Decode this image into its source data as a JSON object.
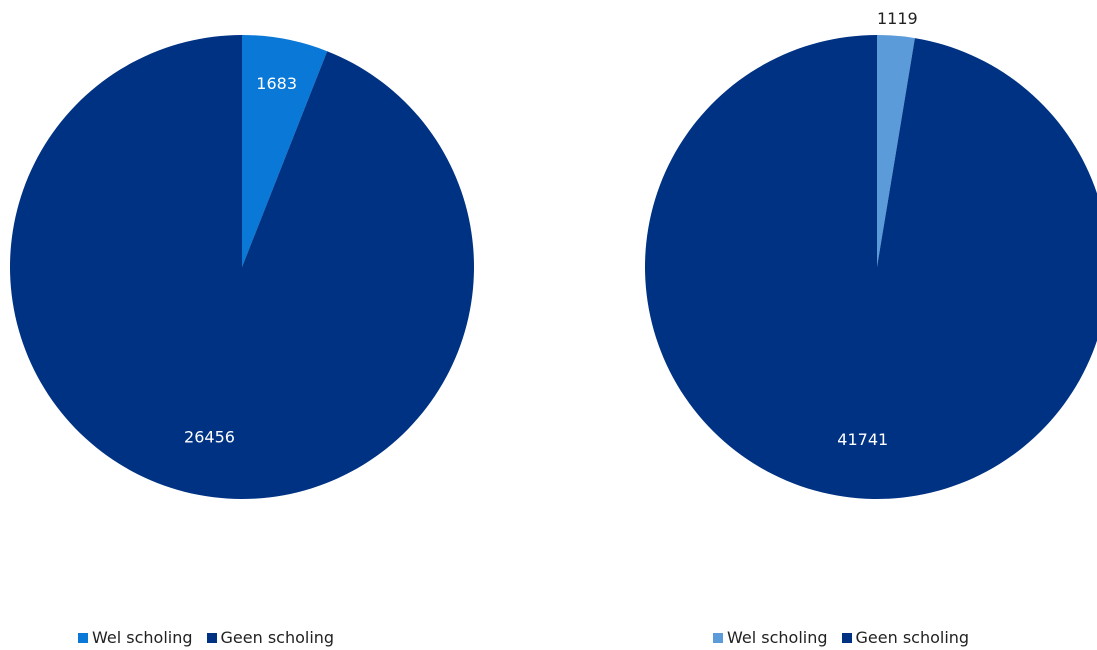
{
  "chart_data": [
    {
      "type": "pie",
      "categories": [
        "Wel scholing",
        "Geen scholing"
      ],
      "values": [
        1683,
        26456
      ],
      "labels": [
        "1683",
        "26456"
      ],
      "colors": [
        "#0a78d6",
        "#003283"
      ],
      "legend": {
        "position": "bottom",
        "entries": [
          "Wel scholing",
          "Geen scholing"
        ]
      },
      "start_angle": "12 o'clock",
      "direction": "clockwise"
    },
    {
      "type": "pie",
      "categories": [
        "Wel scholing",
        "Geen scholing"
      ],
      "values": [
        1119,
        41741
      ],
      "labels": [
        "1119",
        "41741"
      ],
      "colors": [
        "#5b9bd9",
        "#003283"
      ],
      "legend": {
        "position": "bottom",
        "entries": [
          "Wel scholing",
          "Geen scholing"
        ]
      },
      "start_angle": "12 o'clock",
      "direction": "clockwise"
    }
  ]
}
